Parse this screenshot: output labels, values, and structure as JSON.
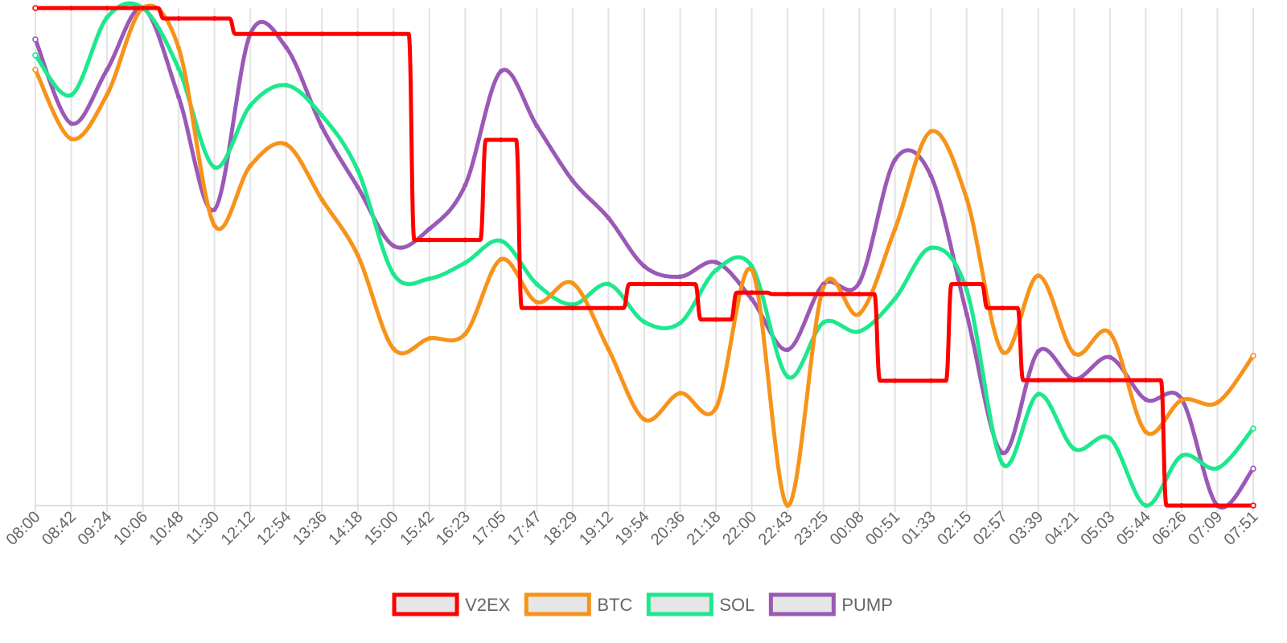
{
  "chart_data": {
    "type": "line",
    "title": "",
    "xlabel": "",
    "ylabel": "",
    "grid": "vertical",
    "y_axis_labels_visible": false,
    "ylim": [
      0,
      100
    ],
    "legend_position": "bottom-center",
    "categories": [
      "08:00",
      "08:42",
      "09:24",
      "10:06",
      "10:48",
      "11:30",
      "12:12",
      "12:54",
      "13:36",
      "14:18",
      "15:00",
      "15:42",
      "16:23",
      "17:05",
      "17:47",
      "18:29",
      "19:12",
      "19:54",
      "20:36",
      "21:18",
      "22:00",
      "22:43",
      "23:25",
      "00:08",
      "00:51",
      "01:33",
      "02:15",
      "02:57",
      "03:39",
      "04:21",
      "05:03",
      "05:44",
      "06:26",
      "07:09",
      "07:51"
    ],
    "series": [
      {
        "name": "V2EX",
        "color": "#ff0000",
        "shape": "step",
        "values": [
          100,
          100,
          100,
          100,
          97.9,
          97.9,
          94.8,
          94.8,
          94.8,
          94.8,
          94.8,
          53.4,
          53.4,
          73.5,
          39.7,
          39.7,
          39.7,
          44.5,
          44.5,
          37.4,
          42.8,
          42.5,
          42.5,
          42.5,
          25.1,
          25.1,
          44.5,
          39.7,
          25.2,
          25.2,
          25.2,
          25.2,
          0,
          0,
          0
        ]
      },
      {
        "name": "BTC",
        "color": "#f7931a",
        "shape": "smooth",
        "values": [
          87.6,
          73.7,
          82.6,
          100,
          92.0,
          56.3,
          68.3,
          72.6,
          61.5,
          50.3,
          31.5,
          33.6,
          34.5,
          49.5,
          40.9,
          44.7,
          31.4,
          17.3,
          22.6,
          19.6,
          47.4,
          0,
          43.9,
          38.5,
          55.6,
          75.2,
          61.7,
          30.9,
          46.2,
          30.6,
          34.7,
          14.8,
          21.2,
          20.7,
          30.1
        ]
      },
      {
        "name": "SOL",
        "color": "#1de88e",
        "shape": "smooth",
        "values": [
          90.5,
          82.5,
          98.1,
          100,
          87.8,
          68.0,
          80.4,
          84.5,
          78.4,
          67.4,
          46.5,
          45.6,
          48.8,
          53.2,
          44.5,
          40.4,
          44.5,
          36.9,
          36.7,
          47.3,
          48.1,
          25.9,
          36.8,
          35.0,
          41.6,
          51.8,
          43.3,
          8.4,
          22.4,
          11.4,
          13.5,
          0,
          10.0,
          7.5,
          15.5
        ]
      },
      {
        "name": "PUMP",
        "color": "#9b59b6",
        "shape": "smooth",
        "values": [
          93.7,
          76.8,
          87.6,
          100,
          82.1,
          59.5,
          94.8,
          92.1,
          76.1,
          64.0,
          52.2,
          55.6,
          64.4,
          87.3,
          76.3,
          65.3,
          57.8,
          48.1,
          46.0,
          48.9,
          41.5,
          31.3,
          44.5,
          44.8,
          69.5,
          66.3,
          38.5,
          10.6,
          31.0,
          25.4,
          29.8,
          21.3,
          21.4,
          0,
          7.4
        ]
      }
    ]
  }
}
